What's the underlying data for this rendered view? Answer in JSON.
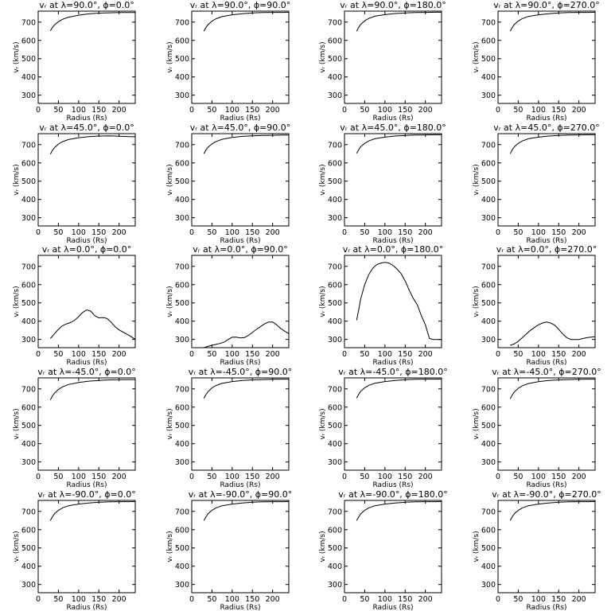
{
  "figure": {
    "xlabel": "Radius (Rs)",
    "ylabel": "vᵣ (km/s)",
    "xticks": [
      0,
      50,
      100,
      150,
      200
    ],
    "yticks": [
      300,
      400,
      500,
      600,
      700
    ],
    "xlim": [
      0,
      240
    ],
    "ylim": [
      255,
      760
    ],
    "line_color": "#000000"
  },
  "chart_data": [
    {
      "type": "line",
      "title": "vᵣ at λ=90.0°, ϕ=0.0°",
      "xlabel": "Radius (Rs)",
      "ylabel": "vᵣ (km/s)",
      "xlim": [
        0,
        240
      ],
      "ylim": [
        255,
        760
      ],
      "x": [
        30,
        35,
        40,
        50,
        60,
        75,
        100,
        125,
        150,
        175,
        200,
        225,
        240
      ],
      "y": [
        652,
        670,
        684,
        702,
        715,
        727,
        738,
        745,
        749,
        751,
        752,
        752,
        752
      ]
    },
    {
      "type": "line",
      "title": "vᵣ at λ=90.0°, ϕ=90.0°",
      "xlabel": "Radius (Rs)",
      "ylabel": "vᵣ (km/s)",
      "xlim": [
        0,
        240
      ],
      "ylim": [
        255,
        760
      ],
      "x": [
        30,
        35,
        40,
        50,
        60,
        75,
        100,
        125,
        150,
        175,
        200,
        225,
        240
      ],
      "y": [
        650,
        670,
        685,
        705,
        718,
        730,
        740,
        746,
        750,
        752,
        753,
        753,
        754
      ]
    },
    {
      "type": "line",
      "title": "vᵣ at λ=90.0°, ϕ=180.0°",
      "xlabel": "Radius (Rs)",
      "ylabel": "vᵣ (km/s)",
      "xlim": [
        0,
        240
      ],
      "ylim": [
        255,
        760
      ],
      "x": [
        30,
        35,
        40,
        50,
        60,
        75,
        100,
        125,
        150,
        175,
        200,
        225,
        240
      ],
      "y": [
        650,
        671,
        687,
        707,
        720,
        732,
        741,
        747,
        750,
        752,
        753,
        754,
        754
      ]
    },
    {
      "type": "line",
      "title": "vᵣ at λ=90.0°, ϕ=270.0°",
      "xlabel": "Radius (Rs)",
      "ylabel": "vᵣ (km/s)",
      "xlim": [
        0,
        240
      ],
      "ylim": [
        255,
        760
      ],
      "x": [
        30,
        35,
        40,
        50,
        60,
        75,
        100,
        125,
        150,
        175,
        200,
        225,
        240
      ],
      "y": [
        650,
        670,
        686,
        706,
        719,
        731,
        740,
        746,
        750,
        752,
        753,
        753,
        754
      ]
    },
    {
      "type": "line",
      "title": "vᵣ at λ=45.0°, ϕ=0.0°",
      "xlabel": "Radius (Rs)",
      "ylabel": "vᵣ (km/s)",
      "xlim": [
        0,
        240
      ],
      "ylim": [
        255,
        760
      ],
      "x": [
        30,
        35,
        40,
        50,
        60,
        75,
        100,
        125,
        150,
        175,
        200,
        225,
        240
      ],
      "y": [
        648,
        668,
        683,
        703,
        716,
        728,
        738,
        744,
        747,
        748,
        746,
        744,
        743
      ]
    },
    {
      "type": "line",
      "title": "vᵣ at λ=45.0°, ϕ=90.0°",
      "xlabel": "Radius (Rs)",
      "ylabel": "vᵣ (km/s)",
      "xlim": [
        0,
        240
      ],
      "ylim": [
        255,
        760
      ],
      "x": [
        30,
        35,
        40,
        50,
        60,
        75,
        100,
        125,
        150,
        175,
        200,
        225,
        240
      ],
      "y": [
        650,
        670,
        685,
        704,
        717,
        729,
        739,
        745,
        748,
        750,
        751,
        752,
        752
      ]
    },
    {
      "type": "line",
      "title": "vᵣ at λ=45.0°, ϕ=180.0°",
      "xlabel": "Radius (Rs)",
      "ylabel": "vᵣ (km/s)",
      "xlim": [
        0,
        240
      ],
      "ylim": [
        255,
        760
      ],
      "x": [
        30,
        35,
        40,
        50,
        60,
        75,
        100,
        125,
        150,
        175,
        200,
        225,
        240
      ],
      "y": [
        652,
        672,
        688,
        707,
        720,
        732,
        741,
        747,
        750,
        752,
        753,
        754,
        754
      ]
    },
    {
      "type": "line",
      "title": "vᵣ at λ=45.0°, ϕ=270.0°",
      "xlabel": "Radius (Rs)",
      "ylabel": "vᵣ (km/s)",
      "xlim": [
        0,
        240
      ],
      "ylim": [
        255,
        760
      ],
      "x": [
        30,
        35,
        40,
        50,
        60,
        75,
        100,
        125,
        150,
        175,
        200,
        225,
        240
      ],
      "y": [
        650,
        671,
        687,
        707,
        720,
        732,
        741,
        747,
        750,
        752,
        753,
        754,
        754
      ]
    },
    {
      "type": "line",
      "title": "vᵣ at λ=0.0°, ϕ=0.0°",
      "xlabel": "Radius (Rs)",
      "ylabel": "vᵣ (km/s)",
      "xlim": [
        0,
        240
      ],
      "ylim": [
        255,
        760
      ],
      "x": [
        30,
        40,
        50,
        60,
        70,
        80,
        90,
        100,
        110,
        120,
        130,
        140,
        150,
        160,
        170,
        180,
        190,
        200,
        210,
        220,
        230,
        240
      ],
      "y": [
        305,
        330,
        355,
        375,
        385,
        392,
        405,
        425,
        448,
        462,
        455,
        430,
        418,
        420,
        415,
        395,
        370,
        352,
        340,
        328,
        315,
        300
      ]
    },
    {
      "type": "line",
      "title": "vᵣ at λ=0.0°, ϕ=90.0°",
      "xlabel": "Radius (Rs)",
      "ylabel": "vᵣ (km/s)",
      "xlim": [
        0,
        240
      ],
      "ylim": [
        255,
        760
      ],
      "x": [
        30,
        40,
        50,
        60,
        70,
        80,
        90,
        100,
        110,
        120,
        130,
        140,
        150,
        160,
        170,
        180,
        190,
        200,
        210,
        220,
        230,
        240
      ],
      "y": [
        255,
        262,
        268,
        273,
        278,
        285,
        300,
        312,
        313,
        308,
        310,
        322,
        338,
        355,
        370,
        385,
        395,
        395,
        380,
        360,
        345,
        332
      ]
    },
    {
      "type": "line",
      "title": "vᵣ at λ=0.0°, ϕ=180.0°",
      "xlabel": "Radius (Rs)",
      "ylabel": "vᵣ (km/s)",
      "xlim": [
        0,
        240
      ],
      "ylim": [
        255,
        760
      ],
      "x": [
        30,
        35,
        40,
        50,
        60,
        70,
        80,
        90,
        100,
        110,
        120,
        130,
        140,
        150,
        160,
        170,
        180,
        190,
        200,
        210,
        220,
        230,
        240
      ],
      "y": [
        405,
        460,
        520,
        600,
        655,
        690,
        710,
        718,
        722,
        718,
        705,
        685,
        660,
        620,
        570,
        525,
        490,
        430,
        380,
        305,
        300,
        300,
        300
      ]
    },
    {
      "type": "line",
      "title": "vᵣ at λ=0.0°, ϕ=270.0°",
      "xlabel": "Radius (Rs)",
      "ylabel": "vᵣ (km/s)",
      "xlim": [
        0,
        240
      ],
      "ylim": [
        255,
        760
      ],
      "x": [
        30,
        40,
        50,
        60,
        70,
        80,
        90,
        100,
        110,
        120,
        130,
        140,
        150,
        160,
        170,
        180,
        190,
        200,
        210,
        220,
        230,
        240
      ],
      "y": [
        268,
        275,
        290,
        310,
        330,
        350,
        365,
        380,
        390,
        395,
        390,
        378,
        355,
        330,
        310,
        300,
        300,
        300,
        305,
        310,
        313,
        315
      ]
    },
    {
      "type": "line",
      "title": "vᵣ at λ=-45.0°, ϕ=0.0°",
      "xlabel": "Radius (Rs)",
      "ylabel": "vᵣ (km/s)",
      "xlim": [
        0,
        240
      ],
      "ylim": [
        255,
        760
      ],
      "x": [
        30,
        35,
        40,
        50,
        60,
        75,
        100,
        125,
        150,
        175,
        200,
        225,
        240
      ],
      "y": [
        640,
        660,
        676,
        697,
        711,
        724,
        735,
        742,
        746,
        749,
        750,
        751,
        751
      ]
    },
    {
      "type": "line",
      "title": "vᵣ at λ=-45.0°, ϕ=90.0°",
      "xlabel": "Radius (Rs)",
      "ylabel": "vᵣ (km/s)",
      "xlim": [
        0,
        240
      ],
      "ylim": [
        255,
        760
      ],
      "x": [
        30,
        35,
        40,
        50,
        60,
        75,
        100,
        125,
        150,
        175,
        200,
        225,
        240
      ],
      "y": [
        648,
        668,
        684,
        705,
        718,
        730,
        740,
        746,
        749,
        751,
        752,
        753,
        753
      ]
    },
    {
      "type": "line",
      "title": "vᵣ at λ=-45.0°, ϕ=180.0°",
      "xlabel": "Radius (Rs)",
      "ylabel": "vᵣ (km/s)",
      "xlim": [
        0,
        240
      ],
      "ylim": [
        255,
        760
      ],
      "x": [
        30,
        35,
        40,
        50,
        60,
        75,
        100,
        125,
        150,
        175,
        200,
        225,
        240
      ],
      "y": [
        650,
        670,
        686,
        706,
        719,
        731,
        740,
        746,
        750,
        752,
        753,
        753,
        754
      ]
    },
    {
      "type": "line",
      "title": "vᵣ at λ=-45.0°, ϕ=270.0°",
      "xlabel": "Radius (Rs)",
      "ylabel": "vᵣ (km/s)",
      "xlim": [
        0,
        240
      ],
      "ylim": [
        255,
        760
      ],
      "x": [
        30,
        35,
        40,
        50,
        60,
        75,
        100,
        125,
        150,
        175,
        200,
        225,
        240
      ],
      "y": [
        645,
        666,
        682,
        703,
        717,
        729,
        739,
        746,
        749,
        751,
        752,
        753,
        753
      ]
    },
    {
      "type": "line",
      "title": "vᵣ at λ=-90.0°, ϕ=0.0°",
      "xlabel": "Radius (Rs)",
      "ylabel": "vᵣ (km/s)",
      "xlim": [
        0,
        240
      ],
      "ylim": [
        255,
        760
      ],
      "x": [
        30,
        35,
        40,
        50,
        60,
        75,
        100,
        125,
        150,
        175,
        200,
        225,
        240
      ],
      "y": [
        650,
        670,
        686,
        706,
        719,
        731,
        740,
        746,
        750,
        752,
        753,
        753,
        754
      ]
    },
    {
      "type": "line",
      "title": "vᵣ at λ=-90.0°, ϕ=90.0°",
      "xlabel": "Radius (Rs)",
      "ylabel": "vᵣ (km/s)",
      "xlim": [
        0,
        240
      ],
      "ylim": [
        255,
        760
      ],
      "x": [
        30,
        35,
        40,
        50,
        60,
        75,
        100,
        125,
        150,
        175,
        200,
        225,
        240
      ],
      "y": [
        650,
        670,
        686,
        706,
        719,
        731,
        740,
        746,
        750,
        752,
        753,
        753,
        754
      ]
    },
    {
      "type": "line",
      "title": "vᵣ at λ=-90.0°, ϕ=180.0°",
      "xlabel": "Radius (Rs)",
      "ylabel": "vᵣ (km/s)",
      "xlim": [
        0,
        240
      ],
      "ylim": [
        255,
        760
      ],
      "x": [
        30,
        35,
        40,
        50,
        60,
        75,
        100,
        125,
        150,
        175,
        200,
        225,
        240
      ],
      "y": [
        650,
        670,
        686,
        706,
        719,
        731,
        740,
        746,
        750,
        752,
        753,
        753,
        754
      ]
    },
    {
      "type": "line",
      "title": "vᵣ at λ=-90.0°, ϕ=270.0°",
      "xlabel": "Radius (Rs)",
      "ylabel": "vᵣ (km/s)",
      "xlim": [
        0,
        240
      ],
      "ylim": [
        255,
        760
      ],
      "x": [
        30,
        35,
        40,
        50,
        60,
        75,
        100,
        125,
        150,
        175,
        200,
        225,
        240
      ],
      "y": [
        650,
        670,
        686,
        706,
        719,
        731,
        740,
        746,
        750,
        752,
        753,
        753,
        754
      ]
    }
  ]
}
